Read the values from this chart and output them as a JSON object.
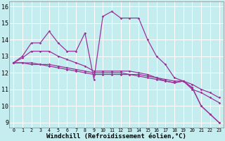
{
  "xlabel": "Windchill (Refroidissement éolien,°C)",
  "background_color": "#c5edf0",
  "grid_color": "#ffffff",
  "line_color": "#993399",
  "ylim": [
    8.7,
    16.3
  ],
  "xlim": [
    -0.5,
    23.5
  ],
  "series": [
    {
      "x": [
        0,
        1,
        2,
        3,
        4,
        5,
        6,
        7,
        8,
        9,
        10,
        11,
        12,
        13,
        14,
        15,
        16,
        17,
        18,
        19,
        20,
        21,
        22,
        23
      ],
      "y": [
        12.6,
        13.0,
        13.8,
        13.8,
        14.5,
        13.8,
        13.3,
        13.3,
        14.4,
        11.6,
        15.4,
        15.7,
        15.3,
        15.3,
        15.3,
        14.0,
        13.0,
        12.5,
        11.7,
        11.5,
        11.1,
        10.0,
        9.5,
        9.0
      ]
    },
    {
      "x": [
        0,
        1,
        2,
        3,
        4,
        5,
        6,
        7,
        8,
        9,
        10,
        11,
        12,
        13,
        14,
        15,
        16,
        17,
        18,
        19,
        20,
        21,
        22,
        23
      ],
      "y": [
        12.6,
        12.9,
        13.3,
        13.3,
        13.3,
        13.0,
        12.8,
        12.6,
        12.4,
        12.1,
        12.1,
        12.1,
        12.1,
        12.1,
        12.0,
        11.9,
        11.7,
        11.5,
        11.4,
        11.5,
        11.1,
        10.0,
        9.5,
        9.0
      ]
    },
    {
      "x": [
        0,
        1,
        2,
        3,
        4,
        5,
        6,
        7,
        8,
        9,
        10,
        11,
        12,
        13,
        14,
        15,
        16,
        17,
        18,
        19,
        20,
        21,
        22,
        23
      ],
      "y": [
        12.6,
        12.6,
        12.6,
        12.5,
        12.5,
        12.4,
        12.3,
        12.2,
        12.1,
        12.0,
        12.0,
        12.0,
        12.0,
        11.9,
        11.9,
        11.8,
        11.7,
        11.6,
        11.5,
        11.5,
        11.3,
        11.0,
        10.8,
        10.5
      ]
    },
    {
      "x": [
        0,
        1,
        2,
        3,
        4,
        5,
        6,
        7,
        8,
        9,
        10,
        11,
        12,
        13,
        14,
        15,
        16,
        17,
        18,
        19,
        20,
        21,
        22,
        23
      ],
      "y": [
        12.6,
        12.6,
        12.5,
        12.5,
        12.4,
        12.3,
        12.2,
        12.1,
        12.0,
        11.9,
        11.9,
        11.9,
        11.9,
        11.9,
        11.8,
        11.7,
        11.6,
        11.5,
        11.4,
        11.5,
        11.0,
        10.8,
        10.5,
        10.2
      ]
    }
  ],
  "yticks": [
    9,
    10,
    11,
    12,
    13,
    14,
    15,
    16
  ],
  "xticks": [
    0,
    1,
    2,
    3,
    4,
    5,
    6,
    7,
    8,
    9,
    10,
    11,
    12,
    13,
    14,
    15,
    16,
    17,
    18,
    19,
    20,
    21,
    22,
    23
  ],
  "ytick_fontsize": 6,
  "xtick_fontsize": 4.8,
  "xlabel_fontsize": 6.5,
  "linewidth": 0.9,
  "markersize": 1.8
}
